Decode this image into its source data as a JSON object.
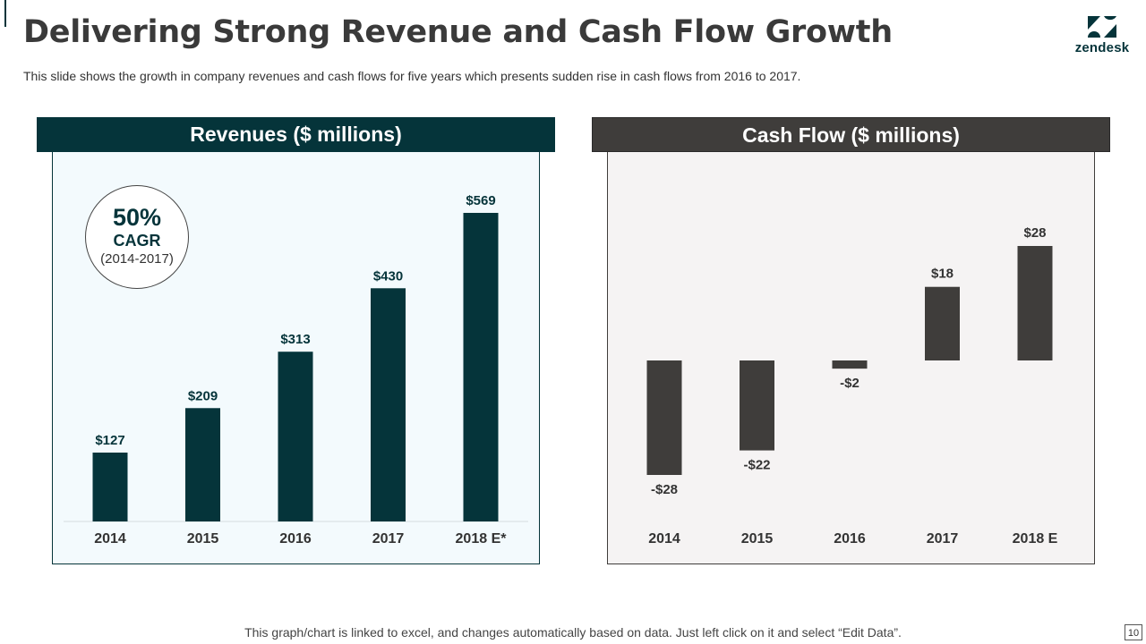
{
  "slide": {
    "title": "Delivering Strong Revenue and Cash Flow Growth",
    "subtitle": "This slide shows the growth in company revenues and cash flows for five years which presents sudden rise in cash flows from 2016 to 2017.",
    "footer": "This graph/chart is linked to excel, and changes automatically based on data. Just left click on it and select “Edit Data”.",
    "page_number": "10"
  },
  "logo": {
    "text": "zendesk",
    "icon": "zendesk-logo-icon",
    "color": "#05343a"
  },
  "cagr": {
    "value": "50%",
    "label": "CAGR",
    "period": "(2014-2017)"
  },
  "colors": {
    "revenue_bar": "#05343a",
    "cashflow_bar": "#3f3d3b",
    "revenue_bg": "#f3fafd",
    "cashflow_bg": "#f5f3f3"
  },
  "chart_data": [
    {
      "type": "bar",
      "title": "Revenues ($ millions)",
      "categories": [
        "2014",
        "2015",
        "2016",
        "2017",
        "2018 E*"
      ],
      "values": [
        127,
        209,
        313,
        430,
        569
      ],
      "value_labels": [
        "$127",
        "$209",
        "$313",
        "$430",
        "$569"
      ],
      "ylim": [
        0,
        569
      ],
      "grid": false,
      "legend": "none"
    },
    {
      "type": "bar",
      "title": "Cash Flow ($ millions)",
      "categories": [
        "2014",
        "2015",
        "2016",
        "2017",
        "2018 E"
      ],
      "values": [
        -28,
        -22,
        -2,
        18,
        28
      ],
      "value_labels": [
        "-$28",
        "-$22",
        "-$2",
        "$18",
        "$28"
      ],
      "ylim": [
        -28,
        28
      ],
      "grid": false,
      "legend": "none"
    }
  ]
}
